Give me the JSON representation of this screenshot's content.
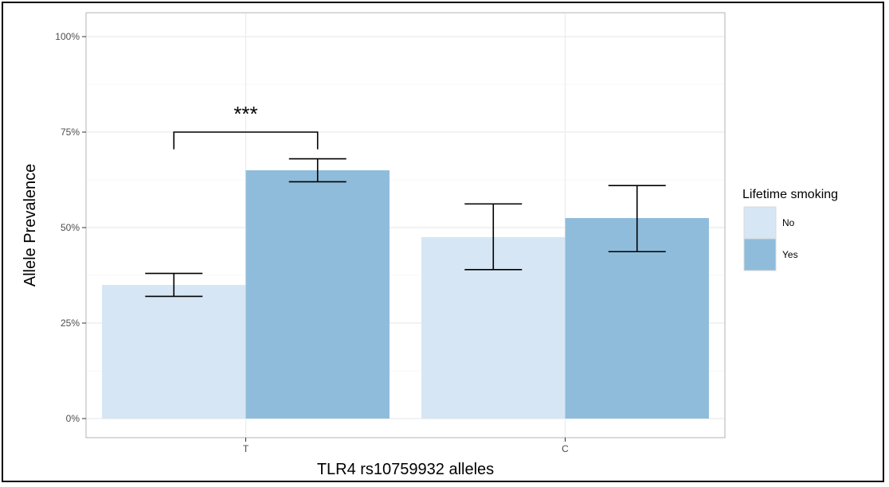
{
  "chart_data": {
    "type": "bar",
    "categories": [
      "T",
      "C"
    ],
    "xlabel": "TLR4 rs10759932 alleles",
    "ylabel": "Allele Prevalence",
    "ylim": [
      0,
      1
    ],
    "yticks": [
      {
        "value": 0,
        "label": "0%"
      },
      {
        "value": 0.25,
        "label": "25%"
      },
      {
        "value": 0.5,
        "label": "50%"
      },
      {
        "value": 0.75,
        "label": "75%"
      },
      {
        "value": 1,
        "label": "100%"
      }
    ],
    "grid": true,
    "legend": {
      "title": "Lifetime smoking",
      "position": "right"
    },
    "series": [
      {
        "name": "No",
        "color": "#d6e6f4",
        "values": [
          0.35,
          0.475
        ],
        "error_low": [
          0.32,
          0.39
        ],
        "error_high": [
          0.38,
          0.562
        ]
      },
      {
        "name": "Yes",
        "color": "#8fbcdb",
        "values": [
          0.65,
          0.525
        ],
        "error_low": [
          0.62,
          0.437
        ],
        "error_high": [
          0.68,
          0.61
        ]
      }
    ],
    "annotations": [
      {
        "text": "***",
        "category": "T",
        "from_series": "No",
        "to_series": "Yes",
        "y": 0.75,
        "tick_bottom": 0.705
      }
    ]
  }
}
